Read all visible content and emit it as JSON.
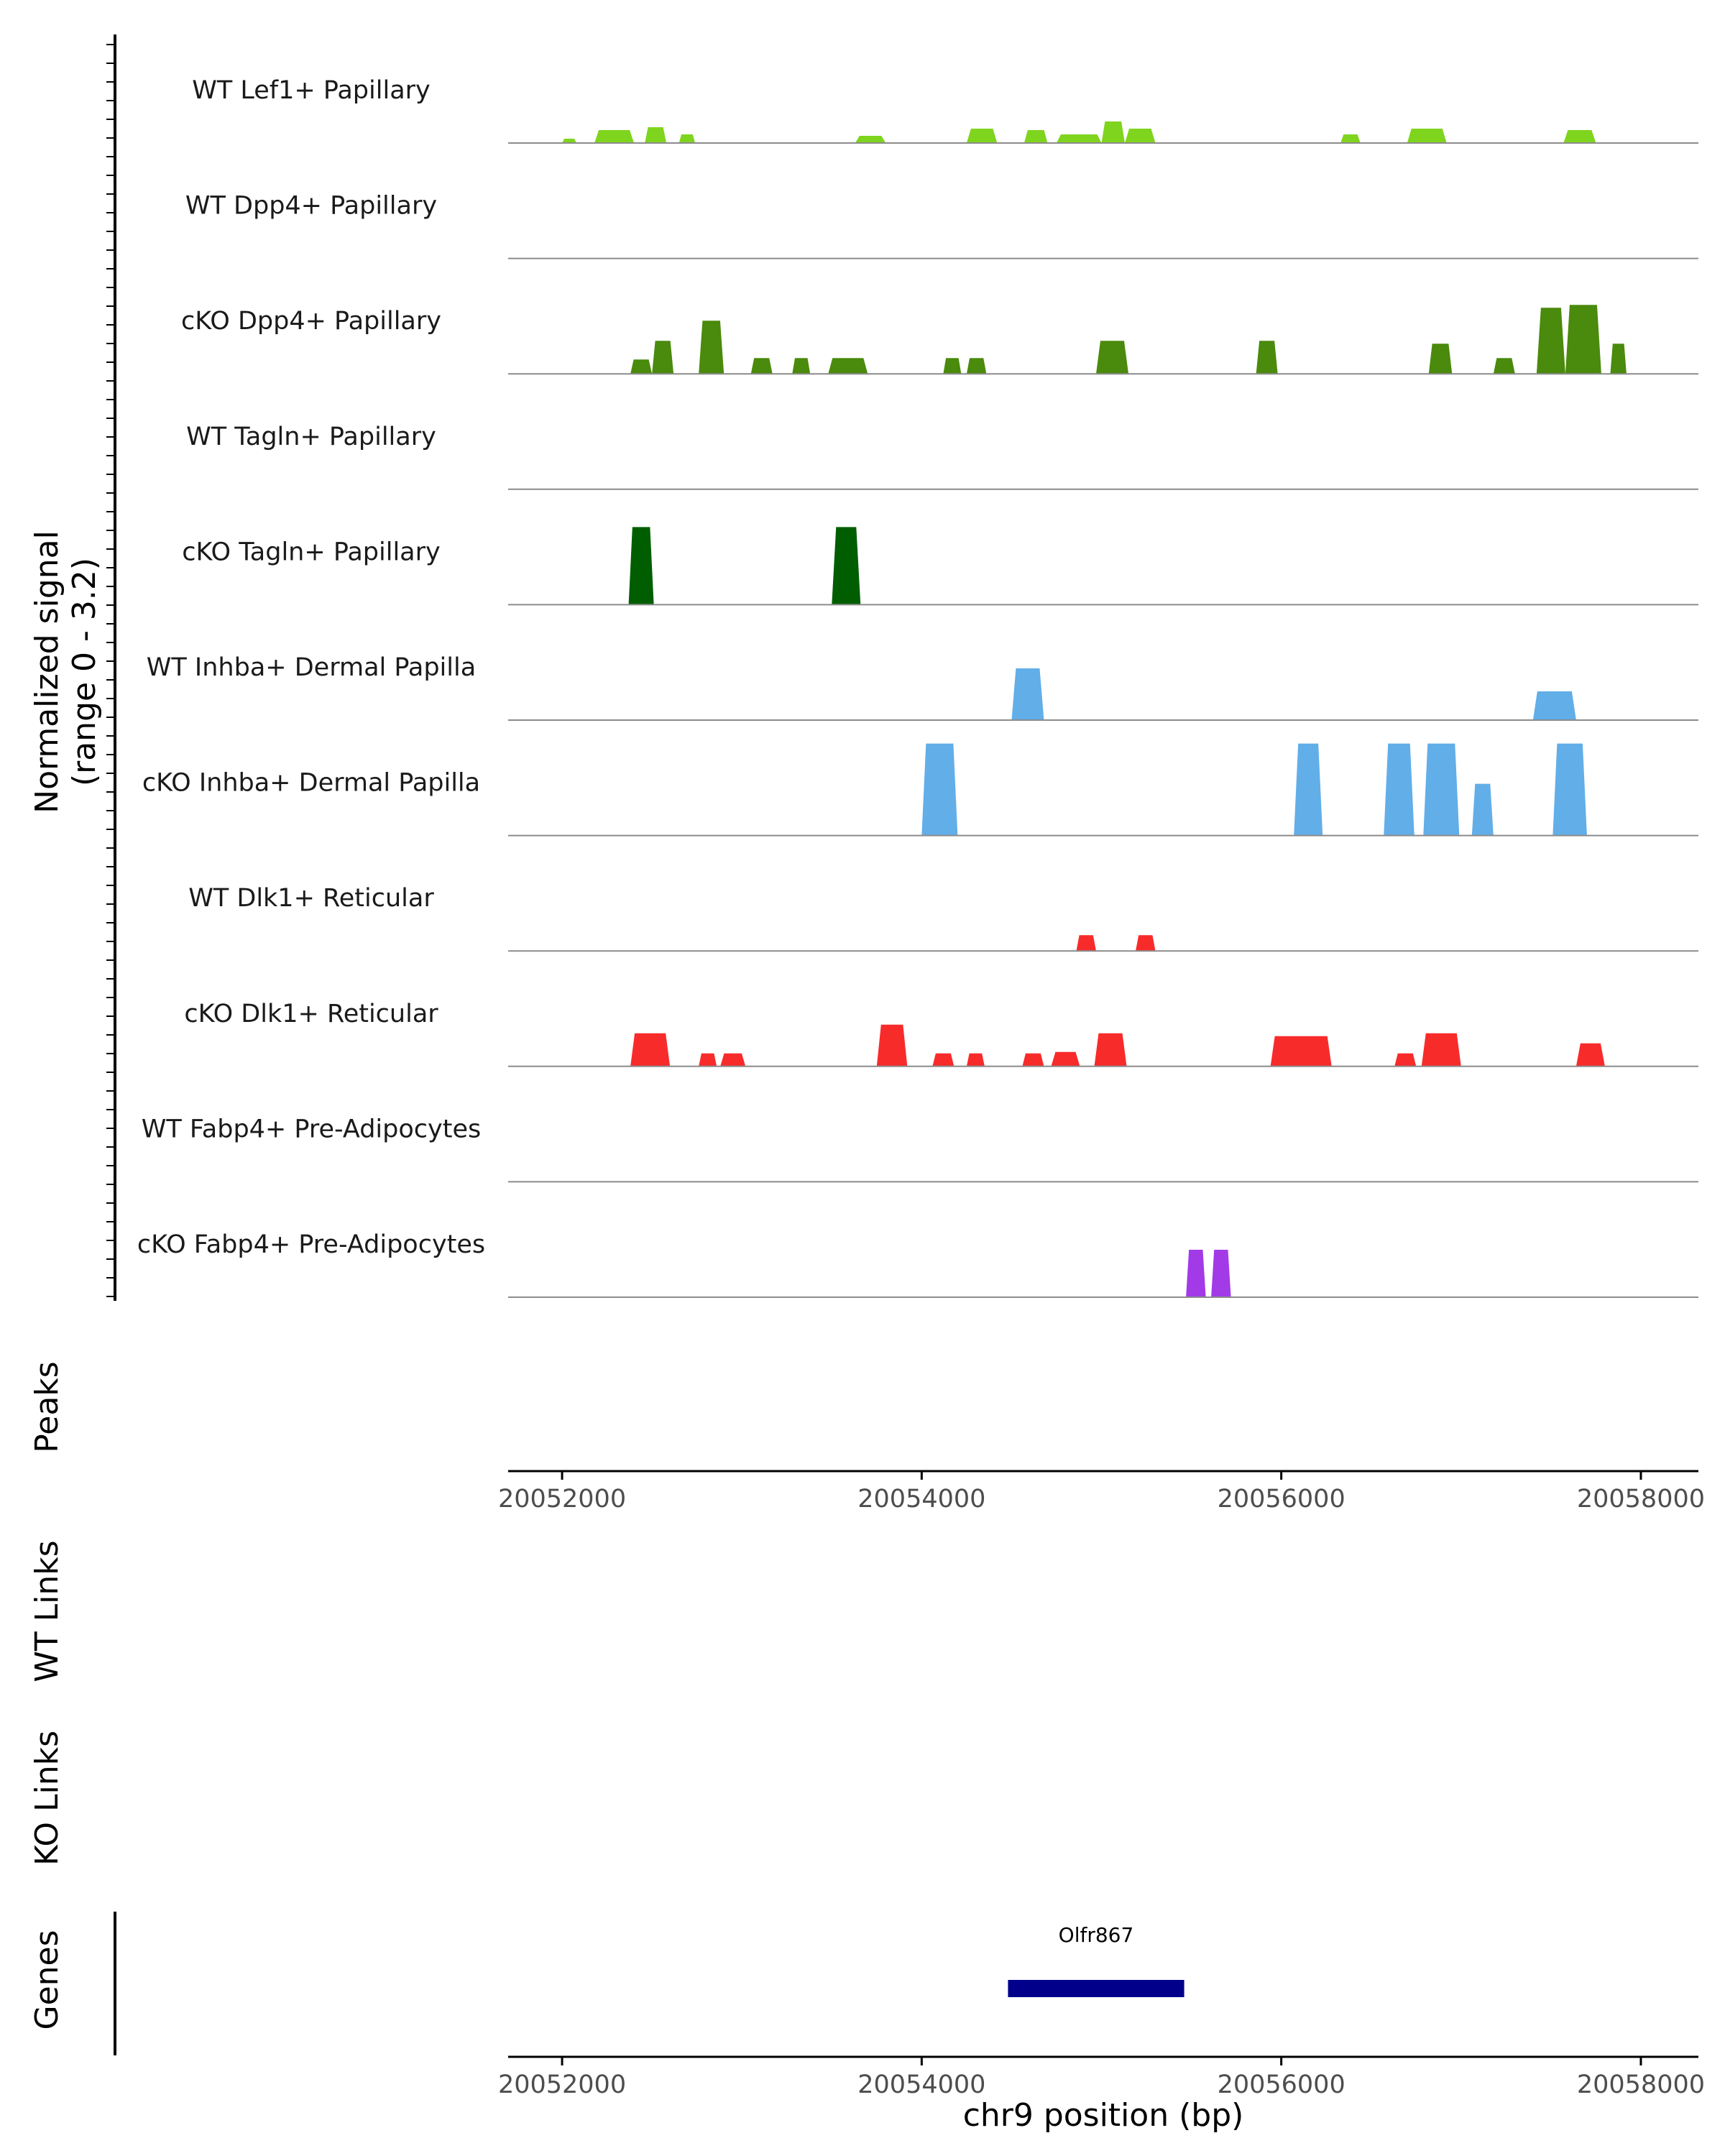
{
  "chart_data": {
    "type": "area",
    "chromosome": "chr9",
    "xlim": [
      20051700,
      20058320
    ],
    "x_ticks": [
      "20052000",
      "20054000",
      "20056000",
      "20058000"
    ],
    "x_tick_values": [
      20052000,
      20054000,
      20056000,
      20058000
    ],
    "xlabel": "chr9 position (bp)",
    "ylabel_line1": "Normalized signal",
    "ylabel_line2": "(range 0 - 3.2)",
    "ylim": [
      0,
      3.2
    ],
    "track_labels": {
      "peaks": "Peaks",
      "wt_links": "WT Links",
      "ko_links": "KO Links",
      "genes": "Genes"
    },
    "series": [
      {
        "name": "WT Lef1+ Papillary",
        "color": "#7fd41e",
        "peaks": [
          [
            20052000,
            20052080,
            0.15
          ],
          [
            20052180,
            20052400,
            0.45
          ],
          [
            20052460,
            20052580,
            0.55
          ],
          [
            20052650,
            20052740,
            0.3
          ],
          [
            20053630,
            20053800,
            0.25
          ],
          [
            20054250,
            20054420,
            0.5
          ],
          [
            20054570,
            20054700,
            0.45
          ],
          [
            20054750,
            20055000,
            0.3
          ],
          [
            20055000,
            20055130,
            0.75
          ],
          [
            20055130,
            20055300,
            0.5
          ],
          [
            20056330,
            20056440,
            0.3
          ],
          [
            20056700,
            20056920,
            0.5
          ],
          [
            20057570,
            20057750,
            0.45
          ]
        ]
      },
      {
        "name": "WT Dpp4+ Papillary",
        "color": "#4a8a0c",
        "peaks": []
      },
      {
        "name": "cKO Dpp4+ Papillary",
        "color": "#4a8a0c",
        "peaks": [
          [
            20052380,
            20052500,
            0.5
          ],
          [
            20052500,
            20052620,
            1.15
          ],
          [
            20052760,
            20052900,
            1.85
          ],
          [
            20053050,
            20053170,
            0.55
          ],
          [
            20053280,
            20053380,
            0.55
          ],
          [
            20053480,
            20053700,
            0.55
          ],
          [
            20054120,
            20054220,
            0.55
          ],
          [
            20054250,
            20054360,
            0.55
          ],
          [
            20054970,
            20055150,
            1.15
          ],
          [
            20055860,
            20055980,
            1.15
          ],
          [
            20056820,
            20056950,
            1.05
          ],
          [
            20057180,
            20057300,
            0.55
          ],
          [
            20057420,
            20057580,
            2.3
          ],
          [
            20057580,
            20057780,
            2.4
          ],
          [
            20057830,
            20057920,
            1.05
          ]
        ]
      },
      {
        "name": "WT Tagln+ Papillary",
        "color": "#005e00",
        "peaks": []
      },
      {
        "name": "cKO Tagln+ Papillary",
        "color": "#005e00",
        "peaks": [
          [
            20052370,
            20052510,
            2.7
          ],
          [
            20053500,
            20053660,
            2.7
          ]
        ]
      },
      {
        "name": "WT Inhba+ Dermal Papilla",
        "color": "#62aee8",
        "peaks": [
          [
            20054500,
            20054680,
            1.8
          ],
          [
            20057400,
            20057640,
            1.0
          ]
        ]
      },
      {
        "name": "cKO Inhba+ Dermal Papilla",
        "color": "#62aee8",
        "peaks": [
          [
            20054000,
            20054200,
            3.2
          ],
          [
            20056070,
            20056230,
            3.2
          ],
          [
            20056570,
            20056740,
            3.2
          ],
          [
            20056790,
            20056990,
            3.2
          ],
          [
            20057060,
            20057180,
            1.8
          ],
          [
            20057510,
            20057700,
            3.2
          ]
        ]
      },
      {
        "name": "WT Dlk1+ Reticular",
        "color": "#f82b2b",
        "peaks": [
          [
            20054860,
            20054970,
            0.55
          ],
          [
            20055190,
            20055300,
            0.55
          ]
        ]
      },
      {
        "name": "cKO Dlk1+ Reticular",
        "color": "#f82b2b",
        "peaks": [
          [
            20052380,
            20052600,
            1.15
          ],
          [
            20052760,
            20052860,
            0.45
          ],
          [
            20052880,
            20053020,
            0.45
          ],
          [
            20053750,
            20053920,
            1.45
          ],
          [
            20054060,
            20054180,
            0.45
          ],
          [
            20054250,
            20054350,
            0.45
          ],
          [
            20054560,
            20054680,
            0.45
          ],
          [
            20054720,
            20054880,
            0.5
          ],
          [
            20054960,
            20055140,
            1.15
          ],
          [
            20055940,
            20056280,
            1.05
          ],
          [
            20056630,
            20056750,
            0.45
          ],
          [
            20056780,
            20057000,
            1.15
          ],
          [
            20057640,
            20057800,
            0.8
          ]
        ]
      },
      {
        "name": "WT Fabp4+ Pre-Adipocytes",
        "color": "#a23ae8",
        "peaks": []
      },
      {
        "name": "cKO Fabp4+ Pre-Adipocytes",
        "color": "#a23ae8",
        "peaks": [
          [
            20055470,
            20055580,
            1.65
          ],
          [
            20055610,
            20055720,
            1.65
          ]
        ]
      }
    ],
    "genes": [
      {
        "name": "Olfr867",
        "start": 20054480,
        "end": 20055460,
        "color": "#00008b"
      }
    ]
  }
}
